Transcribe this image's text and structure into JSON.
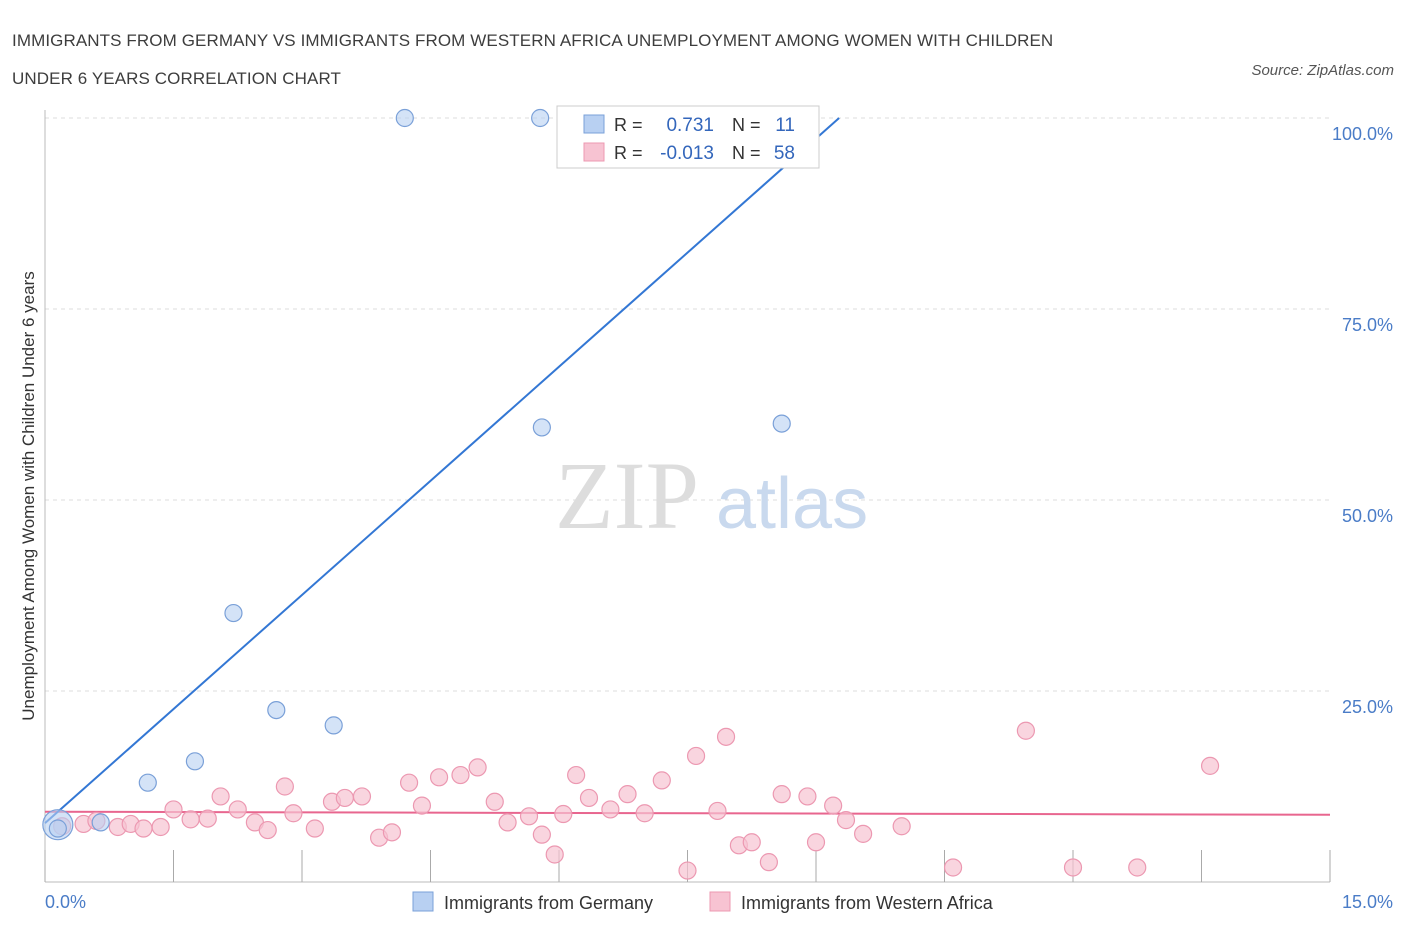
{
  "title_line1": "IMMIGRANTS FROM GERMANY VS IMMIGRANTS FROM WESTERN AFRICA UNEMPLOYMENT AMONG WOMEN WITH CHILDREN",
  "title_line2": "UNDER 6 YEARS CORRELATION CHART",
  "source": "Source: ZipAtlas.com",
  "watermark": {
    "zip": "ZIP",
    "atlas": "atlas"
  },
  "legend_box": {
    "r_label": "R =",
    "n_label": "N =",
    "rows": [
      {
        "r": "0.731",
        "n": "11"
      },
      {
        "r": "-0.013",
        "n": "58"
      }
    ]
  },
  "colors": {
    "germany_fill": "#b8d0f2",
    "germany_stroke": "#7aa0d8",
    "germany_line": "#3377d4",
    "wafrica_fill": "#f7c3d2",
    "wafrica_stroke": "#ec98b1",
    "wafrica_line": "#e8668f",
    "grid": "#dddddd"
  },
  "chart_data": {
    "type": "scatter",
    "xlabel": "",
    "ylabel": "Unemployment Among Women with Children Under 6 years",
    "xlim": [
      0,
      15
    ],
    "ylim": [
      0,
      100
    ],
    "x_tick_labels": [
      "0.0%",
      "15.0%"
    ],
    "y_ticks": [
      {
        "value": 25,
        "label": "25.0%"
      },
      {
        "value": 50,
        "label": "50.0%"
      },
      {
        "value": 75,
        "label": "75.0%"
      },
      {
        "value": 100,
        "label": "100.0%"
      }
    ],
    "legend_placement": "bottom-center",
    "series": [
      {
        "name": "Immigrants from Germany",
        "R": 0.731,
        "N": 11,
        "trend": {
          "x0": 0.0,
          "y0": 7.7,
          "x1": 9.27,
          "y1": 100
        },
        "points": [
          {
            "x": 0.15,
            "y": 7.5,
            "big": true
          },
          {
            "x": 0.15,
            "y": 7.0
          },
          {
            "x": 0.65,
            "y": 7.8
          },
          {
            "x": 1.2,
            "y": 13.0
          },
          {
            "x": 1.75,
            "y": 15.8
          },
          {
            "x": 2.2,
            "y": 35.2
          },
          {
            "x": 2.7,
            "y": 22.5
          },
          {
            "x": 3.37,
            "y": 20.5
          },
          {
            "x": 4.2,
            "y": 100
          },
          {
            "x": 5.8,
            "y": 59.5
          },
          {
            "x": 5.78,
            "y": 100
          },
          {
            "x": 8.6,
            "y": 60.0
          }
        ]
      },
      {
        "name": "Immigrants from Western Africa",
        "R": -0.013,
        "N": 58,
        "trend": {
          "x0": 0.0,
          "y0": 9.2,
          "x1": 15.0,
          "y1": 8.8
        },
        "points": [
          {
            "x": 0.2,
            "y": 7.3
          },
          {
            "x": 0.45,
            "y": 7.6
          },
          {
            "x": 0.6,
            "y": 8.0
          },
          {
            "x": 0.85,
            "y": 7.2
          },
          {
            "x": 1.0,
            "y": 7.6
          },
          {
            "x": 1.15,
            "y": 7.0
          },
          {
            "x": 1.35,
            "y": 7.2
          },
          {
            "x": 1.5,
            "y": 9.5
          },
          {
            "x": 1.7,
            "y": 8.2
          },
          {
            "x": 1.9,
            "y": 8.3
          },
          {
            "x": 2.05,
            "y": 11.2
          },
          {
            "x": 2.25,
            "y": 9.5
          },
          {
            "x": 2.45,
            "y": 7.8
          },
          {
            "x": 2.6,
            "y": 6.8
          },
          {
            "x": 2.8,
            "y": 12.5
          },
          {
            "x": 2.9,
            "y": 9.0
          },
          {
            "x": 3.15,
            "y": 7.0
          },
          {
            "x": 3.35,
            "y": 10.5
          },
          {
            "x": 3.5,
            "y": 11.0
          },
          {
            "x": 3.7,
            "y": 11.2
          },
          {
            "x": 3.9,
            "y": 5.8
          },
          {
            "x": 4.05,
            "y": 6.5
          },
          {
            "x": 4.25,
            "y": 13.0
          },
          {
            "x": 4.4,
            "y": 10.0
          },
          {
            "x": 4.6,
            "y": 13.7
          },
          {
            "x": 4.85,
            "y": 14.0
          },
          {
            "x": 5.05,
            "y": 15.0
          },
          {
            "x": 5.25,
            "y": 10.5
          },
          {
            "x": 5.4,
            "y": 7.8
          },
          {
            "x": 5.65,
            "y": 8.6
          },
          {
            "x": 5.8,
            "y": 6.2
          },
          {
            "x": 5.95,
            "y": 3.6
          },
          {
            "x": 6.05,
            "y": 8.9
          },
          {
            "x": 6.2,
            "y": 14.0
          },
          {
            "x": 6.35,
            "y": 11.0
          },
          {
            "x": 6.6,
            "y": 9.5
          },
          {
            "x": 6.8,
            "y": 11.5
          },
          {
            "x": 7.0,
            "y": 9.0
          },
          {
            "x": 7.2,
            "y": 13.3
          },
          {
            "x": 7.5,
            "y": 1.5
          },
          {
            "x": 7.6,
            "y": 16.5
          },
          {
            "x": 7.85,
            "y": 9.3
          },
          {
            "x": 7.95,
            "y": 19.0
          },
          {
            "x": 8.1,
            "y": 4.8
          },
          {
            "x": 8.25,
            "y": 5.2
          },
          {
            "x": 8.45,
            "y": 2.6
          },
          {
            "x": 8.6,
            "y": 11.5
          },
          {
            "x": 8.9,
            "y": 11.2
          },
          {
            "x": 9.0,
            "y": 5.2
          },
          {
            "x": 9.2,
            "y": 10.0
          },
          {
            "x": 9.35,
            "y": 8.1
          },
          {
            "x": 9.55,
            "y": 6.3
          },
          {
            "x": 10.0,
            "y": 7.3
          },
          {
            "x": 10.6,
            "y": 1.9
          },
          {
            "x": 11.45,
            "y": 19.8
          },
          {
            "x": 12.0,
            "y": 1.9
          },
          {
            "x": 12.75,
            "y": 1.9
          },
          {
            "x": 13.6,
            "y": 15.2
          }
        ]
      }
    ]
  }
}
